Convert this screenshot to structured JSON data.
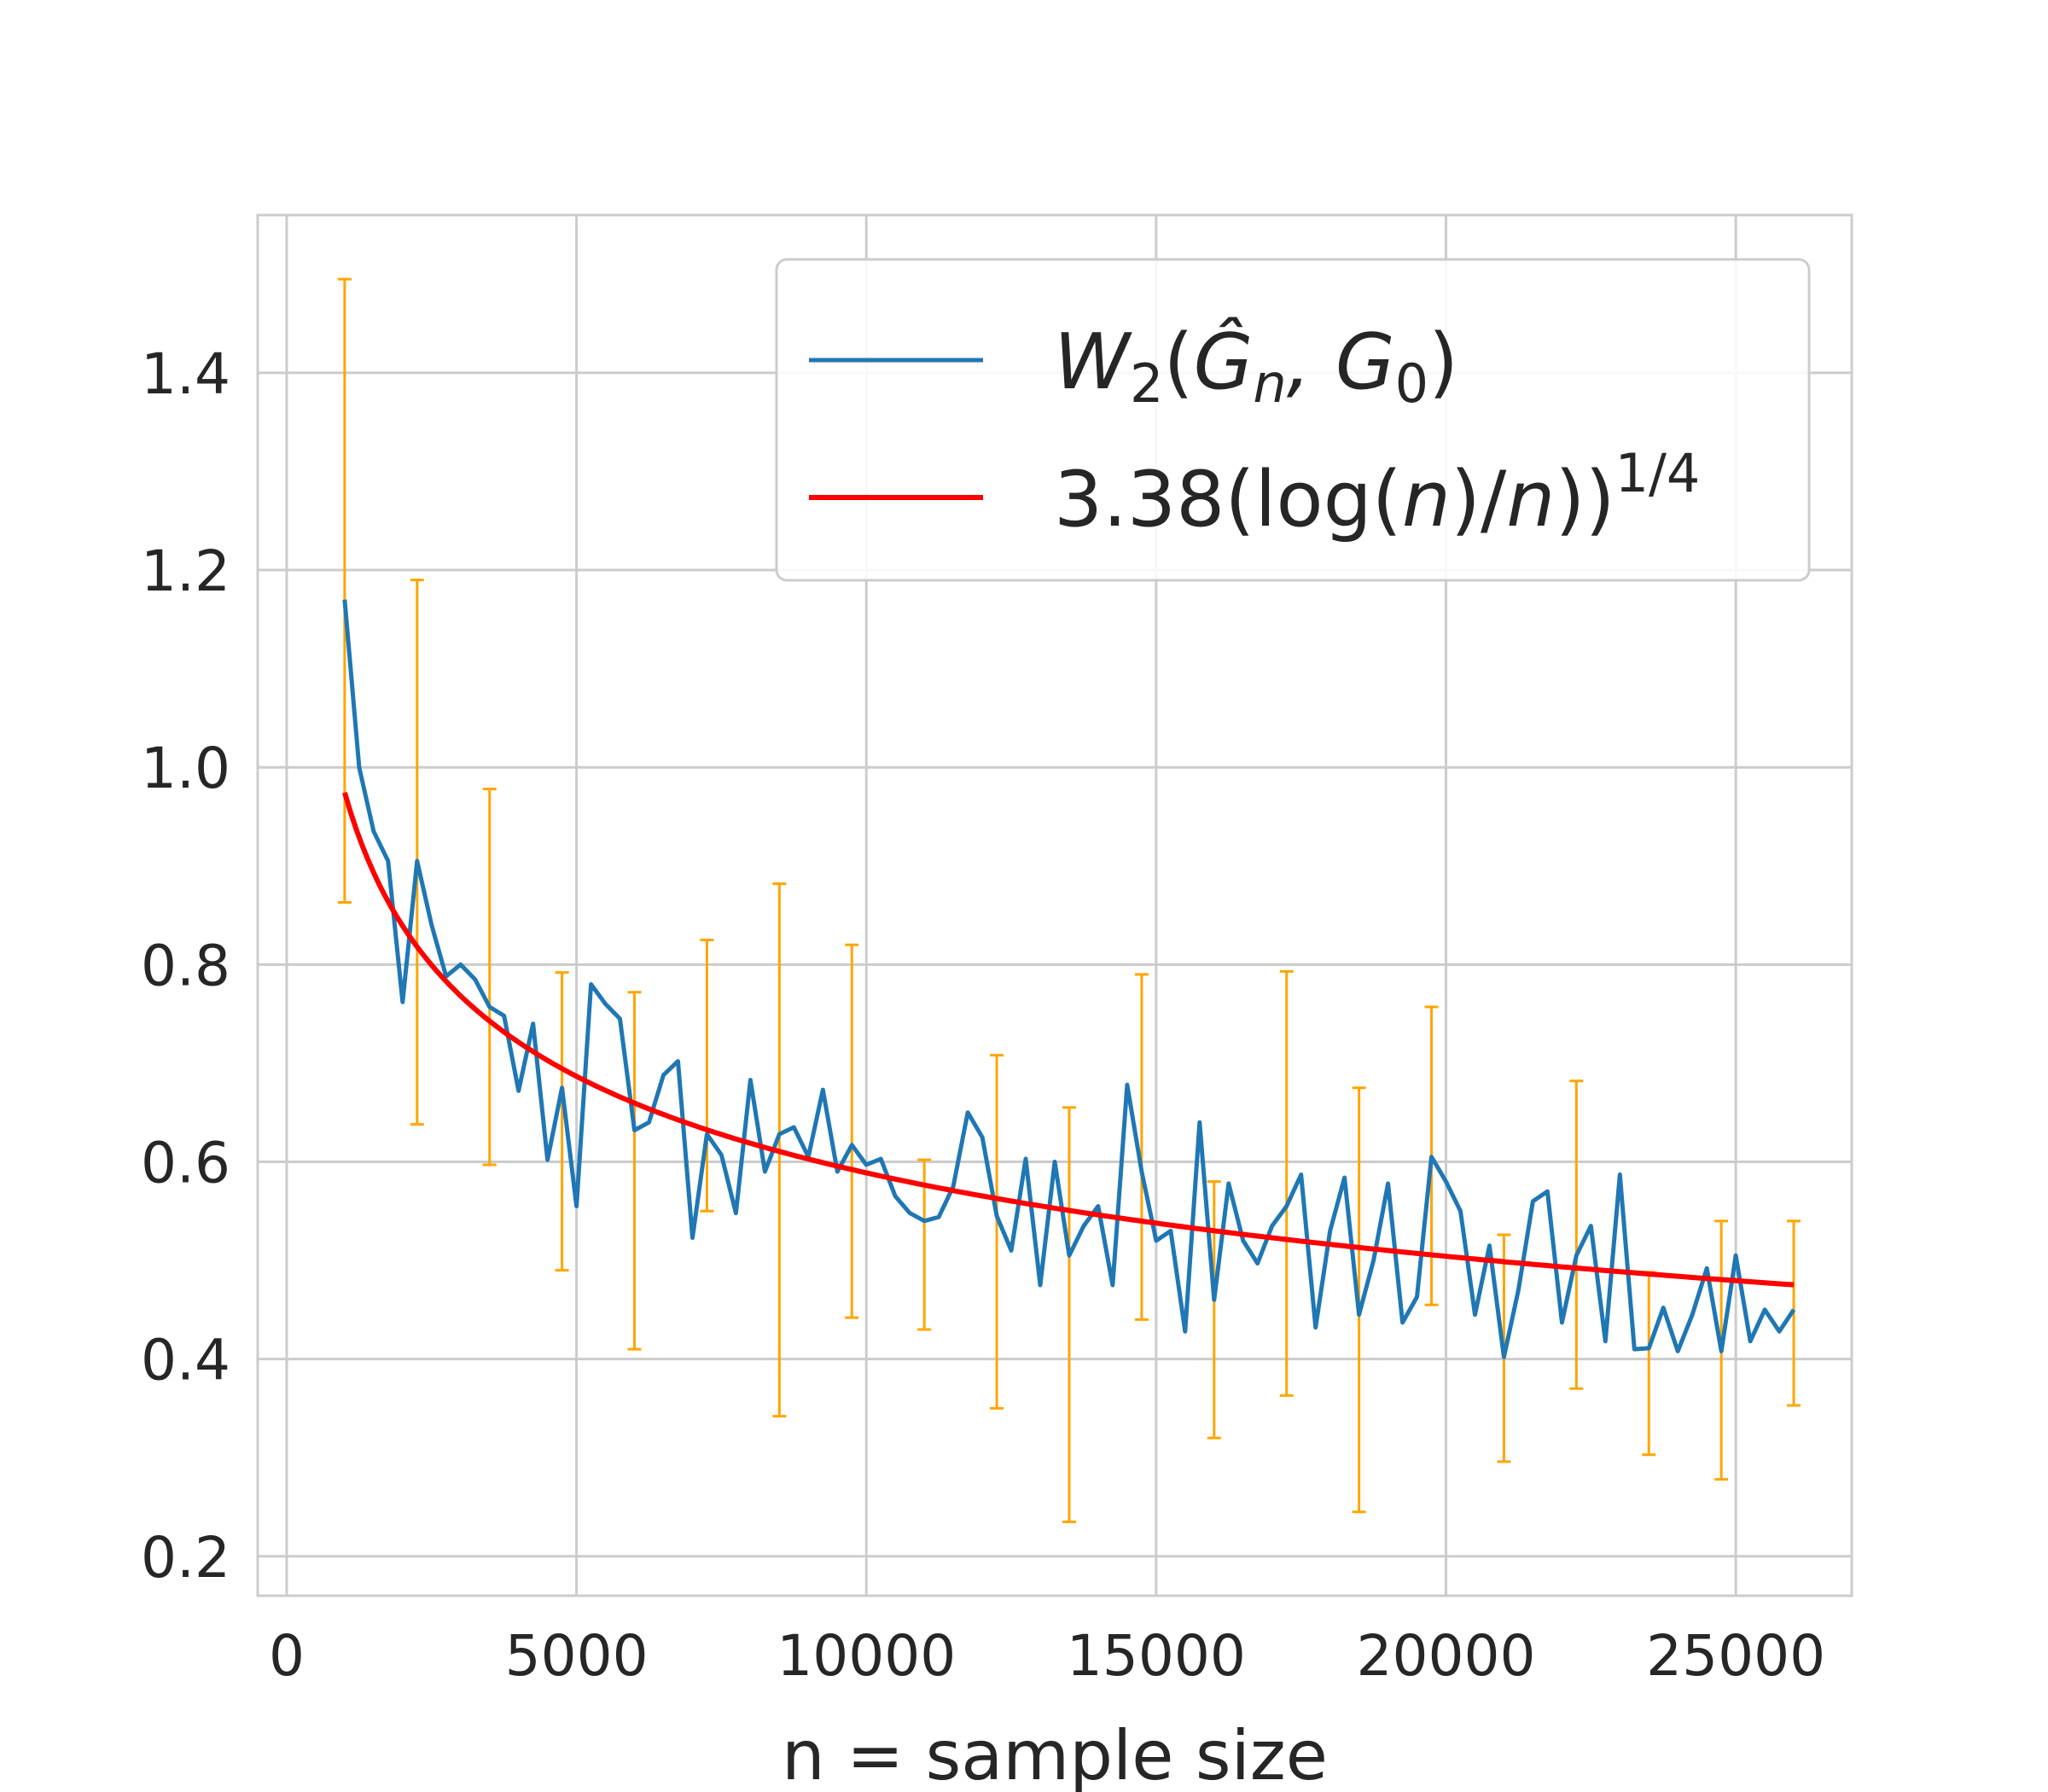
{
  "chart_data": {
    "type": "line",
    "title": "",
    "xlabel": "n = sample size",
    "ylabel": "",
    "xlim": [
      -500,
      27000
    ],
    "ylim": [
      0.16,
      1.56
    ],
    "grid": true,
    "x_ticks": [
      0,
      5000,
      10000,
      15000,
      20000,
      25000
    ],
    "y_ticks": [
      0.2,
      0.4,
      0.6,
      0.8,
      1.0,
      1.2,
      1.4
    ],
    "x_tick_labels": [
      "0",
      "5000",
      "10000",
      "15000",
      "20000",
      "25000"
    ],
    "y_tick_labels": [
      "0.2",
      "0.4",
      "0.6",
      "0.8",
      "1.0",
      "1.2",
      "1.4"
    ],
    "legend_position": "top-right",
    "series": [
      {
        "name": "W2(Ĝn, G0)",
        "legend_label": {
          "main": "W",
          "sub1": "2",
          "open": "(",
          "ghat": "Ĝ",
          "sub2": "n",
          "mid": ", G",
          "sub3": "0",
          "close": ")"
        },
        "color": "#1f77b4",
        "x": [
          1000,
          1250,
          1500,
          1750,
          2000,
          2250,
          2500,
          2750,
          3000,
          3250,
          3500,
          3750,
          4000,
          4250,
          4500,
          4750,
          5000,
          5250,
          5500,
          5750,
          6000,
          6250,
          6500,
          6750,
          7000,
          7250,
          7500,
          7750,
          8000,
          8250,
          8500,
          8750,
          9000,
          9250,
          9500,
          9750,
          10000,
          10250,
          10500,
          10750,
          11000,
          11250,
          11500,
          11750,
          12000,
          12250,
          12500,
          12750,
          13000,
          13250,
          13500,
          13750,
          14000,
          14250,
          14500,
          14750,
          15000,
          15250,
          15500,
          15750,
          16000,
          16250,
          16500,
          16750,
          17000,
          17250,
          17500,
          17750,
          18000,
          18250,
          18500,
          18750,
          19000,
          19250,
          19500,
          19750,
          20000,
          20250,
          20500,
          20750,
          21000,
          21250,
          21500,
          21750,
          22000,
          22250,
          22500,
          22750,
          23000,
          23250,
          23500,
          23750,
          24000,
          24250,
          24500,
          24750,
          25000,
          25250,
          25500,
          25750,
          26000
        ],
        "y": [
          1.17,
          1.0,
          0.935,
          0.905,
          0.762,
          0.905,
          0.84,
          0.788,
          0.8,
          0.785,
          0.757,
          0.748,
          0.672,
          0.74,
          0.602,
          0.675,
          0.555,
          0.78,
          0.76,
          0.745,
          0.632,
          0.64,
          0.688,
          0.702,
          0.523,
          0.628,
          0.607,
          0.548,
          0.683,
          0.59,
          0.628,
          0.635,
          0.605,
          0.673,
          0.59,
          0.617,
          0.597,
          0.603,
          0.565,
          0.548,
          0.54,
          0.544,
          0.575,
          0.65,
          0.625,
          0.545,
          0.51,
          0.603,
          0.475,
          0.6,
          0.505,
          0.535,
          0.555,
          0.475,
          0.678,
          0.59,
          0.52,
          0.53,
          0.428,
          0.64,
          0.46,
          0.578,
          0.52,
          0.497,
          0.535,
          0.555,
          0.587,
          0.432,
          0.53,
          0.584,
          0.445,
          0.5,
          0.578,
          0.437,
          0.463,
          0.605,
          0.58,
          0.55,
          0.445,
          0.515,
          0.402,
          0.47,
          0.56,
          0.57,
          0.437,
          0.505,
          0.535,
          0.418,
          0.587,
          0.41,
          0.411,
          0.452,
          0.408,
          0.445,
          0.492,
          0.408,
          0.505,
          0.418,
          0.45,
          0.428,
          0.45
        ]
      },
      {
        "name": "3.38(log(n)/n)^(1/4)",
        "legend_label": {
          "coef": "3.38(log(",
          "n1": "n",
          "slash": ")/",
          "n2": "n",
          "close": "))",
          "exp": "1/4"
        },
        "color": "#ff0000",
        "formula": {
          "coefficient": 3.38,
          "exponent": 0.25
        },
        "x_range": [
          1000,
          26000
        ]
      }
    ],
    "error_bars": {
      "color": "#ffa500",
      "x": [
        1000,
        2250,
        3500,
        4750,
        6000,
        7250,
        8500,
        9750,
        11000,
        12250,
        13500,
        14750,
        16000,
        17250,
        18500,
        19750,
        21000,
        22250,
        23500,
        24750,
        26000
      ],
      "lower": [
        0.863,
        0.638,
        0.597,
        0.49,
        0.41,
        0.55,
        0.342,
        0.442,
        0.43,
        0.35,
        0.235,
        0.44,
        0.32,
        0.363,
        0.245,
        0.455,
        0.296,
        0.37,
        0.303,
        0.278,
        0.353
      ],
      "upper": [
        1.495,
        1.19,
        0.978,
        0.792,
        0.772,
        0.825,
        0.882,
        0.82,
        0.602,
        0.708,
        0.655,
        0.79,
        0.58,
        0.793,
        0.675,
        0.757,
        0.526,
        0.682,
        0.488,
        0.54,
        0.54
      ]
    }
  }
}
